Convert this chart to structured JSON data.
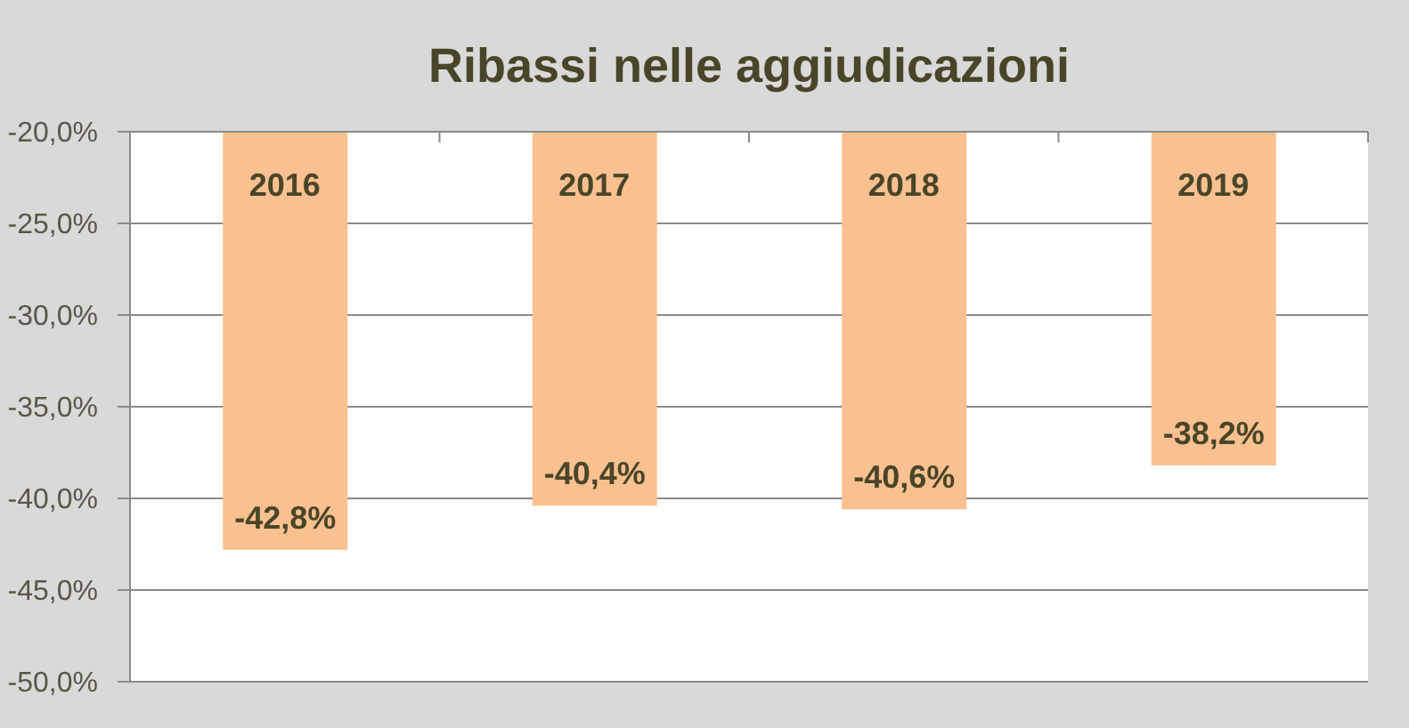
{
  "chart_data": {
    "type": "bar",
    "title": "Ribassi nelle aggiudicazioni",
    "categories": [
      "2016",
      "2017",
      "2018",
      "2019"
    ],
    "values": [
      -42.8,
      -40.4,
      -40.6,
      -38.2
    ],
    "color": "#f9c090",
    "value_labels": [
      "-42,8%",
      "-40,4%",
      "-40,6%",
      "-38,2%"
    ],
    "ylim": [
      -50,
      -20
    ],
    "yticks": [
      {
        "value": -50,
        "label": "-50,0%"
      },
      {
        "value": -45,
        "label": "-45,0%"
      },
      {
        "value": -40,
        "label": "-40,0%"
      },
      {
        "value": -35,
        "label": "-35,0%"
      },
      {
        "value": -30,
        "label": "-30,0%"
      },
      {
        "value": -25,
        "label": "-25,0%"
      },
      {
        "value": -20,
        "label": "-20,0%"
      }
    ],
    "grid": "y"
  }
}
